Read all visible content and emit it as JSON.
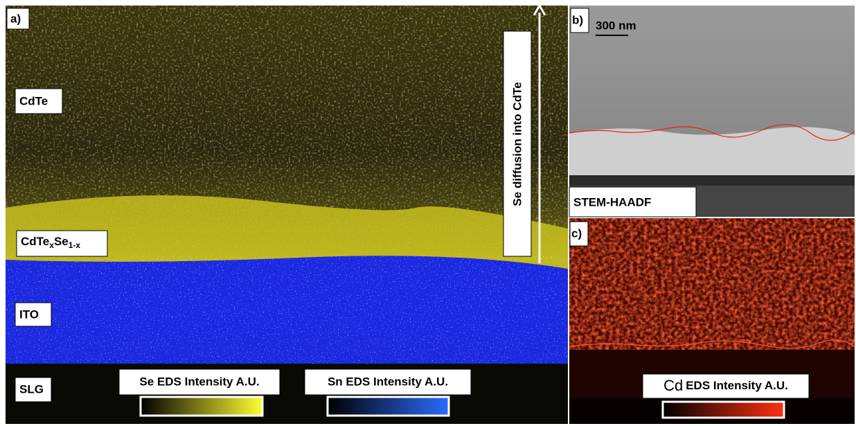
{
  "panel_a": {
    "label": "a)",
    "layers": [
      [
        "CdTe"
      ],
      [
        "CdTe",
        "x",
        "Se",
        "1-x"
      ],
      [
        "ITO"
      ],
      [
        "SLG"
      ]
    ],
    "arrow_label": "Se diffusion into CdTe",
    "colorbars": [
      {
        "label": "Se EDS Intensity A.U."
      },
      {
        "label": "Sn EDS Intensity A.U."
      }
    ]
  },
  "panel_b": {
    "label": "b)",
    "scale_bar": "300 nm",
    "caption": "STEM-HAADF"
  },
  "panel_c": {
    "label": "c)",
    "colorbar": {
      "element": "Cd",
      "label": "EDS Intensity A.U."
    }
  }
}
